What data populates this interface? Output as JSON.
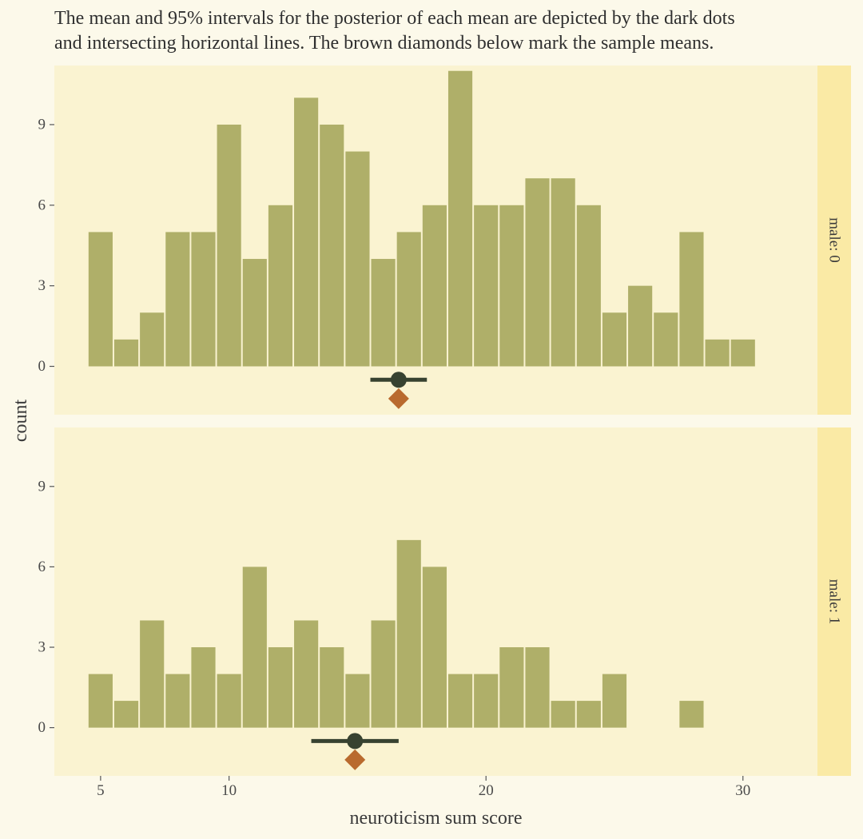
{
  "chart_data": {
    "type": "bar",
    "title": "The mean and 95% intervals for the posterior of each mean are depicted by the dark dots\nand intersecting horizontal lines. The brown diamonds below mark the sample means.",
    "xlabel": "neuroticism sum score",
    "ylabel": "count",
    "x_ticks": [
      5,
      10,
      20,
      30
    ],
    "y_ticks": [
      0,
      3,
      6,
      9
    ],
    "xlim": [
      3.2,
      32.9
    ],
    "ylim": [
      -1.8,
      11.2
    ],
    "grid": false,
    "colors": {
      "bar": "#afaf69",
      "panel": "#faf3d1",
      "strip": "#faeaa5",
      "posterior": "#374230",
      "sample_mean": "#b96a2e"
    },
    "panels": [
      {
        "strip": "male: 0",
        "bins": [
          5,
          6,
          7,
          8,
          9,
          10,
          11,
          12,
          13,
          14,
          15,
          16,
          17,
          18,
          19,
          20,
          21,
          22,
          23,
          24,
          25,
          26,
          27,
          28,
          29,
          30
        ],
        "counts": [
          5,
          1,
          2,
          5,
          5,
          9,
          4,
          6,
          10,
          9,
          8,
          4,
          5,
          6,
          11,
          6,
          6,
          7,
          7,
          6,
          2,
          3,
          2,
          5,
          1,
          1
        ],
        "posterior_mean": 16.6,
        "posterior_interval": [
          15.5,
          17.7
        ],
        "sample_mean": 16.6
      },
      {
        "strip": "male: 1",
        "bins": [
          5,
          6,
          7,
          8,
          9,
          10,
          11,
          12,
          13,
          14,
          15,
          16,
          17,
          18,
          19,
          20,
          21,
          22,
          23,
          24,
          25,
          26,
          27,
          28
        ],
        "counts": [
          2,
          1,
          4,
          2,
          3,
          2,
          6,
          3,
          4,
          3,
          2,
          4,
          7,
          6,
          2,
          2,
          3,
          3,
          1,
          1,
          2,
          0,
          0,
          1
        ],
        "posterior_mean": 14.9,
        "posterior_interval": [
          13.2,
          16.6
        ],
        "sample_mean": 14.9
      }
    ]
  }
}
